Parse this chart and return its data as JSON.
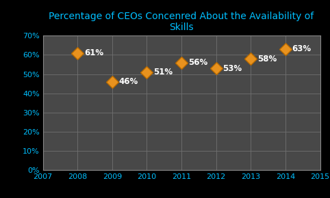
{
  "title": "Percentage of CEOs Concenred About the Availability of\nSkills",
  "years": [
    2008,
    2009,
    2010,
    2011,
    2012,
    2013,
    2014
  ],
  "values": [
    0.61,
    0.46,
    0.51,
    0.56,
    0.53,
    0.58,
    0.63
  ],
  "labels": [
    "61%",
    "46%",
    "51%",
    "56%",
    "53%",
    "58%",
    "63%"
  ],
  "xlim": [
    2007,
    2015
  ],
  "xticks": [
    2007,
    2008,
    2009,
    2010,
    2011,
    2012,
    2013,
    2014,
    2015
  ],
  "ylim": [
    0,
    0.7
  ],
  "yticks": [
    0.0,
    0.1,
    0.2,
    0.3,
    0.4,
    0.5,
    0.6,
    0.7
  ],
  "marker_color": "#E8921E",
  "marker_edge_color": "#B86A00",
  "background_color": "#000000",
  "plot_background_color": "#484848",
  "title_color": "#00BFFF",
  "tick_color": "#00BFFF",
  "grid_color": "#707070",
  "label_color": "#FFFFFF",
  "title_fontsize": 10,
  "tick_fontsize": 8,
  "label_fontsize": 8.5
}
